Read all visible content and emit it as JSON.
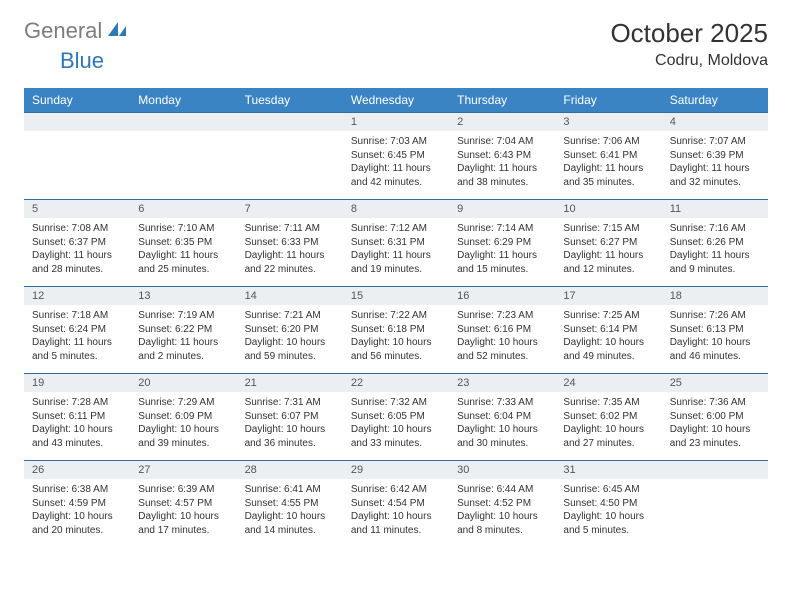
{
  "brand": {
    "word1": "General",
    "word2": "Blue",
    "word1_color": "#7d7d7d",
    "word2_color": "#2f78b7",
    "icon_color": "#2f78b7"
  },
  "title": {
    "month": "October 2025",
    "location": "Codru, Moldova",
    "month_fontsize": 26,
    "location_fontsize": 16
  },
  "colors": {
    "header_bg": "#3b84c4",
    "header_text": "#ffffff",
    "daynum_bg": "#eceff1",
    "row_border": "#2f6ea0",
    "body_text": "#333333",
    "page_bg": "#ffffff"
  },
  "fonts": {
    "header_size": 12,
    "daynum_size": 11,
    "info_size": 10
  },
  "days_of_week": [
    "Sunday",
    "Monday",
    "Tuesday",
    "Wednesday",
    "Thursday",
    "Friday",
    "Saturday"
  ],
  "weeks": [
    {
      "nums": [
        "",
        "",
        "",
        "1",
        "2",
        "3",
        "4"
      ],
      "sunrise": [
        "",
        "",
        "",
        "Sunrise: 7:03 AM",
        "Sunrise: 7:04 AM",
        "Sunrise: 7:06 AM",
        "Sunrise: 7:07 AM"
      ],
      "sunset": [
        "",
        "",
        "",
        "Sunset: 6:45 PM",
        "Sunset: 6:43 PM",
        "Sunset: 6:41 PM",
        "Sunset: 6:39 PM"
      ],
      "day1": [
        "",
        "",
        "",
        "Daylight: 11 hours",
        "Daylight: 11 hours",
        "Daylight: 11 hours",
        "Daylight: 11 hours"
      ],
      "day2": [
        "",
        "",
        "",
        "and 42 minutes.",
        "and 38 minutes.",
        "and 35 minutes.",
        "and 32 minutes."
      ]
    },
    {
      "nums": [
        "5",
        "6",
        "7",
        "8",
        "9",
        "10",
        "11"
      ],
      "sunrise": [
        "Sunrise: 7:08 AM",
        "Sunrise: 7:10 AM",
        "Sunrise: 7:11 AM",
        "Sunrise: 7:12 AM",
        "Sunrise: 7:14 AM",
        "Sunrise: 7:15 AM",
        "Sunrise: 7:16 AM"
      ],
      "sunset": [
        "Sunset: 6:37 PM",
        "Sunset: 6:35 PM",
        "Sunset: 6:33 PM",
        "Sunset: 6:31 PM",
        "Sunset: 6:29 PM",
        "Sunset: 6:27 PM",
        "Sunset: 6:26 PM"
      ],
      "day1": [
        "Daylight: 11 hours",
        "Daylight: 11 hours",
        "Daylight: 11 hours",
        "Daylight: 11 hours",
        "Daylight: 11 hours",
        "Daylight: 11 hours",
        "Daylight: 11 hours"
      ],
      "day2": [
        "and 28 minutes.",
        "and 25 minutes.",
        "and 22 minutes.",
        "and 19 minutes.",
        "and 15 minutes.",
        "and 12 minutes.",
        "and 9 minutes."
      ]
    },
    {
      "nums": [
        "12",
        "13",
        "14",
        "15",
        "16",
        "17",
        "18"
      ],
      "sunrise": [
        "Sunrise: 7:18 AM",
        "Sunrise: 7:19 AM",
        "Sunrise: 7:21 AM",
        "Sunrise: 7:22 AM",
        "Sunrise: 7:23 AM",
        "Sunrise: 7:25 AM",
        "Sunrise: 7:26 AM"
      ],
      "sunset": [
        "Sunset: 6:24 PM",
        "Sunset: 6:22 PM",
        "Sunset: 6:20 PM",
        "Sunset: 6:18 PM",
        "Sunset: 6:16 PM",
        "Sunset: 6:14 PM",
        "Sunset: 6:13 PM"
      ],
      "day1": [
        "Daylight: 11 hours",
        "Daylight: 11 hours",
        "Daylight: 10 hours",
        "Daylight: 10 hours",
        "Daylight: 10 hours",
        "Daylight: 10 hours",
        "Daylight: 10 hours"
      ],
      "day2": [
        "and 5 minutes.",
        "and 2 minutes.",
        "and 59 minutes.",
        "and 56 minutes.",
        "and 52 minutes.",
        "and 49 minutes.",
        "and 46 minutes."
      ]
    },
    {
      "nums": [
        "19",
        "20",
        "21",
        "22",
        "23",
        "24",
        "25"
      ],
      "sunrise": [
        "Sunrise: 7:28 AM",
        "Sunrise: 7:29 AM",
        "Sunrise: 7:31 AM",
        "Sunrise: 7:32 AM",
        "Sunrise: 7:33 AM",
        "Sunrise: 7:35 AM",
        "Sunrise: 7:36 AM"
      ],
      "sunset": [
        "Sunset: 6:11 PM",
        "Sunset: 6:09 PM",
        "Sunset: 6:07 PM",
        "Sunset: 6:05 PM",
        "Sunset: 6:04 PM",
        "Sunset: 6:02 PM",
        "Sunset: 6:00 PM"
      ],
      "day1": [
        "Daylight: 10 hours",
        "Daylight: 10 hours",
        "Daylight: 10 hours",
        "Daylight: 10 hours",
        "Daylight: 10 hours",
        "Daylight: 10 hours",
        "Daylight: 10 hours"
      ],
      "day2": [
        "and 43 minutes.",
        "and 39 minutes.",
        "and 36 minutes.",
        "and 33 minutes.",
        "and 30 minutes.",
        "and 27 minutes.",
        "and 23 minutes."
      ]
    },
    {
      "nums": [
        "26",
        "27",
        "28",
        "29",
        "30",
        "31",
        ""
      ],
      "sunrise": [
        "Sunrise: 6:38 AM",
        "Sunrise: 6:39 AM",
        "Sunrise: 6:41 AM",
        "Sunrise: 6:42 AM",
        "Sunrise: 6:44 AM",
        "Sunrise: 6:45 AM",
        ""
      ],
      "sunset": [
        "Sunset: 4:59 PM",
        "Sunset: 4:57 PM",
        "Sunset: 4:55 PM",
        "Sunset: 4:54 PM",
        "Sunset: 4:52 PM",
        "Sunset: 4:50 PM",
        ""
      ],
      "day1": [
        "Daylight: 10 hours",
        "Daylight: 10 hours",
        "Daylight: 10 hours",
        "Daylight: 10 hours",
        "Daylight: 10 hours",
        "Daylight: 10 hours",
        ""
      ],
      "day2": [
        "and 20 minutes.",
        "and 17 minutes.",
        "and 14 minutes.",
        "and 11 minutes.",
        "and 8 minutes.",
        "and 5 minutes.",
        ""
      ]
    }
  ]
}
